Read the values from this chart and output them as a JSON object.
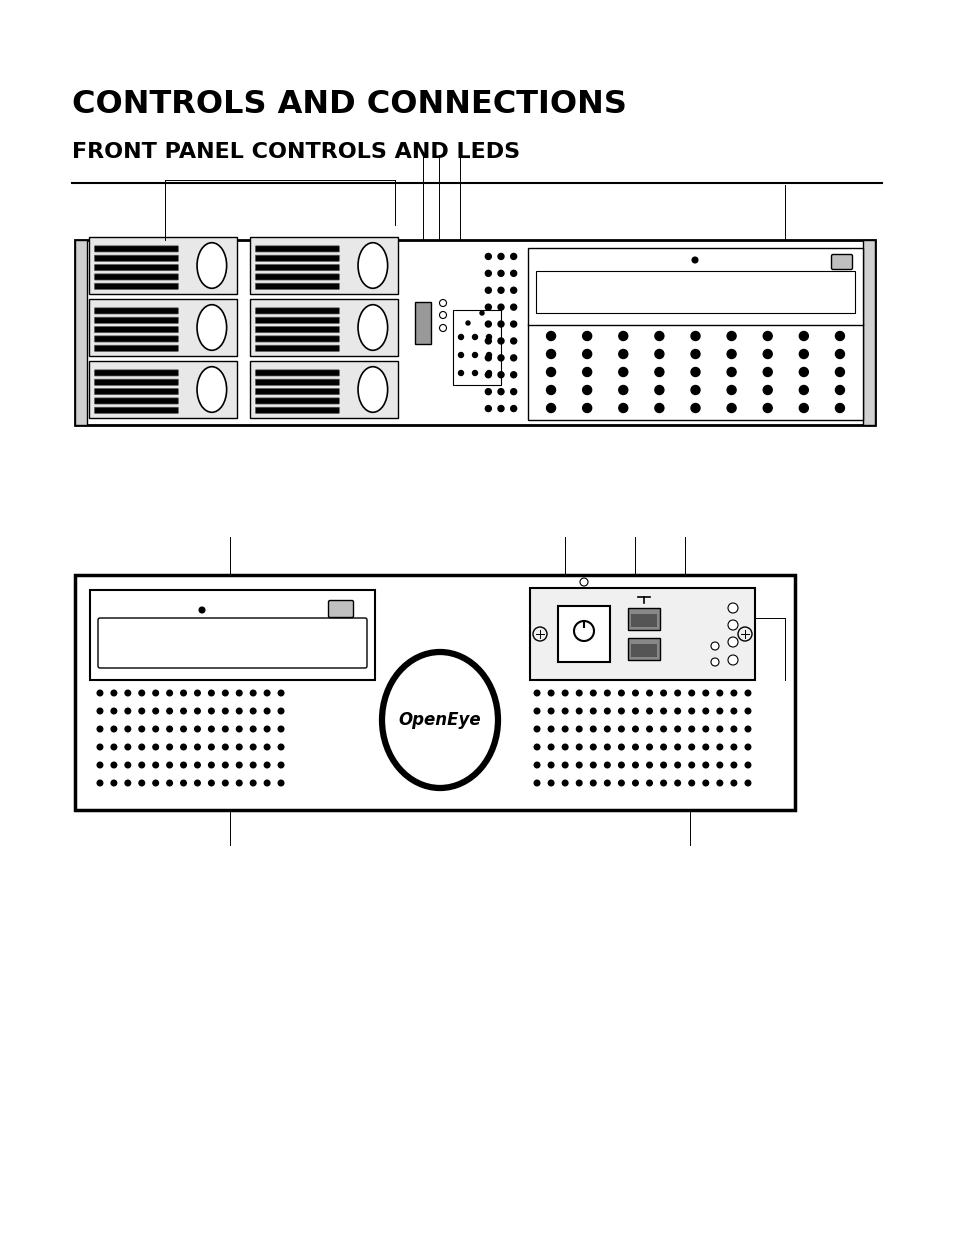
{
  "title1": "CONTROLS AND CONNECTIONS",
  "title2": "FRONT PANEL CONTROLS AND LEDS",
  "bg_color": "#ffffff",
  "fig_width": 9.54,
  "fig_height": 12.35
}
